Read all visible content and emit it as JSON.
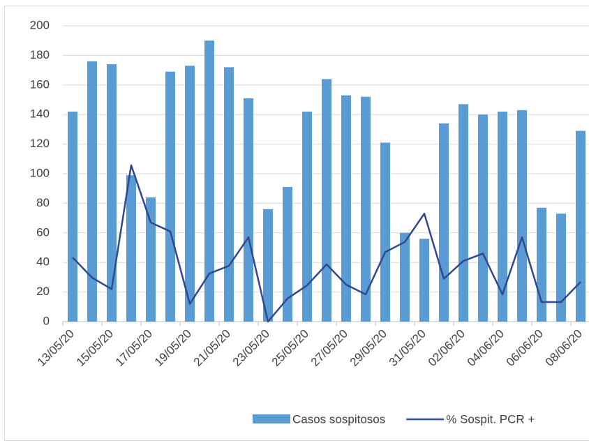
{
  "chart_data": {
    "type": "bar-line",
    "categories": [
      "13/05/20",
      null,
      "15/05/20",
      null,
      "17/05/20",
      null,
      "19/05/20",
      null,
      "21/05/20",
      null,
      "23/05/20",
      null,
      "25/05/20",
      null,
      "27/05/20",
      null,
      "29/05/20",
      null,
      "31/05/20",
      null,
      "02/06/20",
      null,
      "04/06/20",
      null,
      "06/06/20",
      null,
      "08/06/20"
    ],
    "series": [
      {
        "name": "Casos sospitosos",
        "type": "bar",
        "color": "#5b9bd5",
        "values": [
          142,
          176,
          174,
          99,
          84,
          169,
          173,
          190,
          172,
          151,
          76,
          91,
          142,
          164,
          153,
          152,
          121,
          60,
          56,
          134,
          147,
          140,
          142,
          143,
          77,
          73,
          129
        ]
      },
      {
        "name": "% Sospit. PCR +",
        "type": "line",
        "color": "#2e4a8c",
        "values": [
          43.4,
          29.7,
          22,
          105.7,
          67,
          61,
          12,
          32.5,
          37.7,
          57,
          0,
          15.6,
          24.5,
          38.7,
          25,
          18.4,
          47,
          53.8,
          73,
          29,
          41,
          46,
          18.4,
          57,
          13.2,
          13.2,
          26.9
        ]
      }
    ],
    "ylim": [
      0,
      200
    ],
    "yticks": [
      0,
      20,
      40,
      60,
      80,
      100,
      120,
      140,
      160,
      180,
      200
    ],
    "grid": true,
    "legend": "bottom"
  }
}
